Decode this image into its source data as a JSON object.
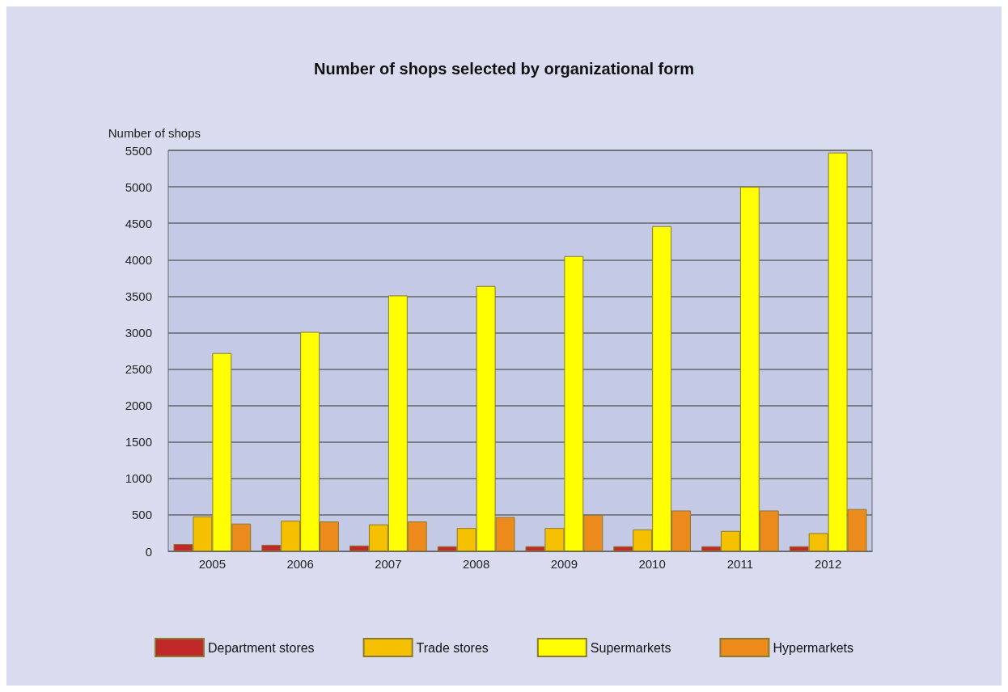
{
  "chart_data": {
    "type": "bar",
    "title": "Number of shops selected by organizational form",
    "ylabel": "Number of shops",
    "categories": [
      "2005",
      "2006",
      "2007",
      "2008",
      "2009",
      "2010",
      "2011",
      "2012"
    ],
    "series": [
      {
        "name": "Department stores",
        "color": "#c0282a",
        "values": [
          100,
          90,
          80,
          70,
          70,
          70,
          70,
          70
        ]
      },
      {
        "name": "Trade stores",
        "color": "#f5c000",
        "values": [
          480,
          420,
          370,
          320,
          320,
          300,
          280,
          250
        ]
      },
      {
        "name": "Supermarkets",
        "color": "#ffff00",
        "values": [
          2720,
          3010,
          3510,
          3640,
          4050,
          4460,
          5000,
          5470
        ]
      },
      {
        "name": "Hypermarkets",
        "color": "#ec8a1c",
        "values": [
          380,
          410,
          410,
          470,
          500,
          560,
          560,
          580
        ]
      }
    ],
    "ylim": [
      0,
      5500
    ],
    "yticks": [
      0,
      500,
      1000,
      1500,
      2000,
      2500,
      3000,
      3500,
      4000,
      4500,
      5000,
      5500
    ],
    "grid": "y",
    "legend": "bottom"
  }
}
